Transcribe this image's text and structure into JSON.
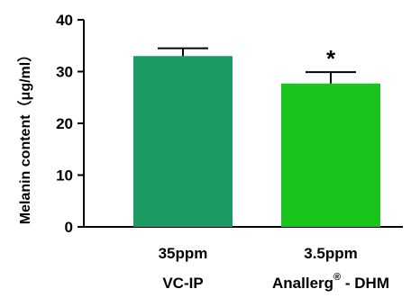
{
  "chart_data": {
    "type": "bar",
    "ylabel": "Melanin content（μg/ml）",
    "ylim": [
      0,
      40
    ],
    "yticks": [
      0,
      10,
      20,
      30,
      40
    ],
    "categories": [
      {
        "line1": "35ppm",
        "line2": "VC-IP",
        "line2_sup": "",
        "line2_tail": "",
        "value": 33.0,
        "error": 1.5,
        "color": "#1a9b63",
        "annotation": ""
      },
      {
        "line1": "3.5ppm",
        "line2": "Anallerg",
        "line2_sup": "®",
        "line2_tail": " - DHM",
        "value": 27.7,
        "error": 2.2,
        "color": "#19c41b",
        "annotation": "*"
      }
    ],
    "grid": false,
    "legend": "none"
  }
}
